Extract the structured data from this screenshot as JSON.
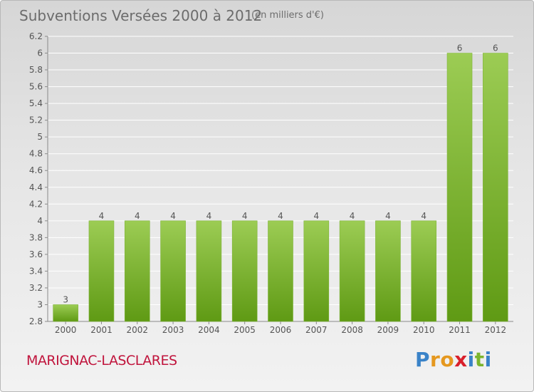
{
  "header": {
    "title": "Subventions Versées 2000 à 2012",
    "unit": "(en milliers d'€)"
  },
  "footer": {
    "place": "MARIGNAC-LASCLARES",
    "brand": [
      "P",
      "r",
      "o",
      "x",
      "i",
      "t",
      "i"
    ],
    "brand_colors": [
      "#3a83c8",
      "#e5981f",
      "#e5981f",
      "#d9202c",
      "#3a83c8",
      "#7bb52e",
      "#3a83c8"
    ]
  },
  "chart_data": {
    "type": "bar",
    "categories": [
      "2000",
      "2001",
      "2002",
      "2003",
      "2004",
      "2005",
      "2006",
      "2007",
      "2008",
      "2009",
      "2010",
      "2011",
      "2012"
    ],
    "values": [
      3,
      4,
      4,
      4,
      4,
      4,
      4,
      4,
      4,
      4,
      4,
      6,
      6
    ],
    "data_labels": [
      "3",
      "4",
      "4",
      "4",
      "4",
      "4",
      "4",
      "4",
      "4",
      "4",
      "4",
      "6",
      "6"
    ],
    "y_ticks": [
      2.8,
      3,
      3.2,
      3.4,
      3.6,
      3.8,
      4,
      4.2,
      4.4,
      4.6,
      4.8,
      5,
      5.2,
      5.4,
      5.6,
      5.8,
      6,
      6.2
    ],
    "y_tick_labels": [
      "2.8",
      "3",
      "3.2",
      "3.4",
      "3.6",
      "3.8",
      "4",
      "4.2",
      "4.4",
      "4.6",
      "4.8",
      "5",
      "5.2",
      "5.4",
      "5.6",
      "5.8",
      "6",
      "6.2"
    ],
    "ylim": [
      2.8,
      6.2
    ],
    "grid": true,
    "bar_color_top": "#9ccc54",
    "bar_color_bottom": "#5f9a14",
    "grid_color": "#ffffff"
  }
}
